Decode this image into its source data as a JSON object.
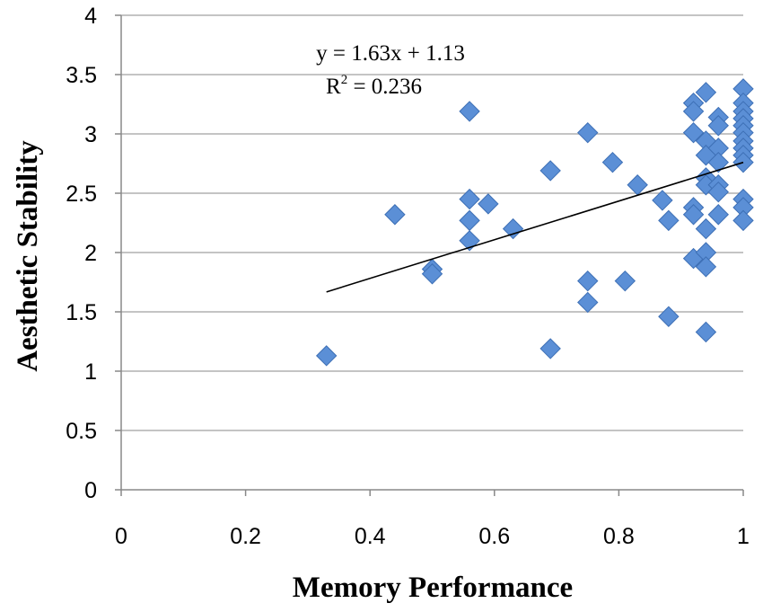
{
  "chart_data": {
    "type": "scatter",
    "title": "",
    "xlabel": "Memory Performance",
    "ylabel": "Aesthetic Stability",
    "xlim": [
      0,
      1
    ],
    "ylim": [
      0,
      4
    ],
    "x_ticks": [
      "0",
      "0.2",
      "0.4",
      "0.6",
      "0.8",
      "1"
    ],
    "y_ticks": [
      "0",
      "0.5",
      "1",
      "1.5",
      "2",
      "2.5",
      "3",
      "3.5",
      "4"
    ],
    "grid": "horizontal",
    "marker": "diamond",
    "colors": {
      "marker_fill": "#5b8fd6",
      "marker_stroke": "#3d6fb5",
      "trendline": "#000000",
      "grid": "#b0b0b0"
    },
    "points": [
      [
        0.33,
        1.13
      ],
      [
        0.44,
        2.32
      ],
      [
        0.5,
        1.86
      ],
      [
        0.5,
        1.82
      ],
      [
        0.56,
        3.19
      ],
      [
        0.56,
        2.45
      ],
      [
        0.56,
        2.27
      ],
      [
        0.56,
        2.1
      ],
      [
        0.59,
        2.41
      ],
      [
        0.63,
        2.2
      ],
      [
        0.69,
        2.69
      ],
      [
        0.69,
        1.19
      ],
      [
        0.75,
        3.01
      ],
      [
        0.75,
        1.76
      ],
      [
        0.75,
        1.58
      ],
      [
        0.79,
        2.76
      ],
      [
        0.81,
        1.76
      ],
      [
        0.83,
        2.57
      ],
      [
        0.87,
        2.44
      ],
      [
        0.88,
        2.27
      ],
      [
        0.88,
        1.46
      ],
      [
        0.92,
        3.26
      ],
      [
        0.92,
        3.19
      ],
      [
        0.92,
        3.01
      ],
      [
        0.92,
        2.38
      ],
      [
        0.92,
        2.32
      ],
      [
        0.92,
        1.95
      ],
      [
        0.94,
        3.35
      ],
      [
        0.94,
        2.94
      ],
      [
        0.94,
        2.82
      ],
      [
        0.94,
        2.63
      ],
      [
        0.94,
        2.57
      ],
      [
        0.94,
        2.2
      ],
      [
        0.94,
        2.0
      ],
      [
        0.94,
        1.88
      ],
      [
        0.94,
        1.33
      ],
      [
        0.96,
        3.14
      ],
      [
        0.96,
        3.07
      ],
      [
        0.96,
        2.88
      ],
      [
        0.96,
        2.76
      ],
      [
        0.96,
        2.57
      ],
      [
        0.96,
        2.51
      ],
      [
        0.96,
        2.32
      ],
      [
        1.0,
        3.38
      ],
      [
        1.0,
        3.26
      ],
      [
        1.0,
        3.19
      ],
      [
        1.0,
        3.13
      ],
      [
        1.0,
        3.07
      ],
      [
        1.0,
        3.01
      ],
      [
        1.0,
        2.94
      ],
      [
        1.0,
        2.88
      ],
      [
        1.0,
        2.82
      ],
      [
        1.0,
        2.76
      ],
      [
        1.0,
        2.45
      ],
      [
        1.0,
        2.38
      ],
      [
        1.0,
        2.27
      ]
    ],
    "trendline": {
      "slope": 1.63,
      "intercept": 1.13,
      "x_range": [
        0.33,
        1.0
      ],
      "equation_label": "y = 1.63x + 1.13",
      "r2_prefix": "R",
      "r2_superscript": "2",
      "r2_suffix": " = 0.236"
    }
  }
}
